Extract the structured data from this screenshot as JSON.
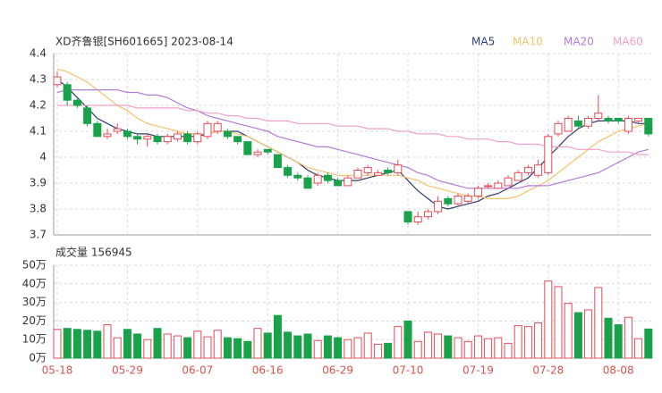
{
  "chart_data": [
    {
      "type": "candlestick",
      "title": "XD齐鲁银[SH601665] 2023-08-14",
      "categories": [
        "05-18",
        null,
        null,
        null,
        null,
        null,
        null,
        "05-29",
        null,
        null,
        null,
        null,
        null,
        null,
        "06-07",
        null,
        null,
        null,
        null,
        null,
        null,
        "06-16",
        null,
        null,
        null,
        null,
        null,
        null,
        "06-29",
        null,
        null,
        null,
        null,
        null,
        null,
        "07-10",
        null,
        null,
        null,
        null,
        null,
        null,
        "07-19",
        null,
        null,
        null,
        null,
        null,
        null,
        "07-28",
        null,
        null,
        null,
        null,
        null,
        null,
        "08-08",
        null,
        null,
        null
      ],
      "open": [
        4.28,
        4.28,
        4.22,
        4.19,
        4.13,
        4.08,
        4.1,
        4.1,
        4.08,
        4.07,
        4.08,
        4.06,
        4.07,
        4.09,
        4.06,
        4.08,
        4.1,
        4.1,
        4.08,
        4.06,
        4.01,
        4.03,
        4.01,
        3.96,
        3.93,
        3.92,
        3.9,
        3.93,
        3.91,
        3.89,
        3.92,
        3.94,
        3.93,
        3.95,
        3.94,
        3.79,
        3.75,
        3.77,
        3.79,
        3.84,
        3.82,
        3.83,
        3.85,
        3.89,
        3.88,
        3.89,
        3.91,
        3.94,
        3.93,
        3.94,
        4.09,
        4.1,
        4.14,
        4.12,
        4.15,
        4.15,
        4.15,
        4.1,
        4.14,
        4.15
      ],
      "high": [
        4.33,
        4.29,
        4.23,
        4.2,
        4.14,
        4.11,
        4.13,
        4.11,
        4.09,
        4.09,
        4.09,
        4.09,
        4.1,
        4.1,
        4.1,
        4.14,
        4.14,
        4.11,
        4.08,
        4.06,
        4.03,
        4.03,
        4.01,
        3.97,
        3.94,
        3.93,
        3.94,
        3.94,
        3.92,
        3.93,
        3.96,
        3.97,
        3.95,
        3.96,
        3.99,
        3.79,
        3.79,
        3.8,
        3.85,
        3.85,
        3.86,
        3.86,
        3.89,
        3.9,
        3.91,
        3.93,
        3.95,
        3.97,
        3.99,
        4.09,
        4.14,
        4.16,
        4.16,
        4.16,
        4.24,
        4.16,
        4.15,
        4.16,
        4.15,
        4.15
      ],
      "low": [
        4.27,
        4.2,
        4.19,
        4.12,
        4.08,
        4.07,
        4.09,
        4.07,
        4.05,
        4.04,
        4.05,
        4.05,
        4.06,
        4.05,
        4.05,
        4.07,
        4.09,
        4.07,
        4.05,
        4.01,
        4.0,
        4.01,
        3.96,
        3.92,
        3.91,
        3.88,
        3.89,
        3.9,
        3.89,
        3.89,
        3.92,
        3.93,
        3.93,
        3.93,
        3.93,
        3.74,
        3.74,
        3.76,
        3.78,
        3.81,
        3.81,
        3.82,
        3.84,
        3.88,
        3.88,
        3.89,
        3.91,
        3.93,
        3.92,
        3.93,
        4.08,
        4.1,
        4.11,
        4.11,
        4.14,
        4.13,
        4.13,
        4.09,
        4.13,
        4.08
      ],
      "close": [
        4.31,
        4.22,
        4.2,
        4.13,
        4.08,
        4.09,
        4.11,
        4.08,
        4.07,
        4.08,
        4.06,
        4.08,
        4.09,
        4.06,
        4.09,
        4.13,
        4.13,
        4.08,
        4.06,
        4.01,
        4.02,
        4.02,
        3.96,
        3.93,
        3.92,
        3.88,
        3.93,
        3.91,
        3.89,
        3.92,
        3.95,
        3.96,
        3.94,
        3.94,
        3.97,
        3.75,
        3.77,
        3.79,
        3.83,
        3.82,
        3.85,
        3.85,
        3.88,
        3.89,
        3.9,
        3.92,
        3.94,
        3.96,
        3.97,
        4.08,
        4.13,
        4.15,
        4.12,
        4.15,
        4.17,
        4.14,
        4.14,
        4.15,
        4.15,
        4.09
      ],
      "up_color": "#e84a56",
      "down_color": "#1aa24a",
      "series": [
        {
          "name": "MA5",
          "color": "#2c3e6f",
          "values": [
            4.3,
            4.27,
            4.23,
            4.19,
            4.15,
            4.13,
            4.11,
            4.1,
            4.09,
            4.09,
            4.08,
            4.08,
            4.08,
            4.08,
            4.08,
            4.09,
            4.1,
            4.1,
            4.1,
            4.08,
            4.06,
            4.04,
            4.02,
            4.0,
            3.98,
            3.95,
            3.93,
            3.92,
            3.91,
            3.91,
            3.91,
            3.92,
            3.93,
            3.94,
            3.95,
            3.91,
            3.87,
            3.84,
            3.81,
            3.8,
            3.81,
            3.82,
            3.83,
            3.85,
            3.86,
            3.88,
            3.9,
            3.92,
            3.96,
            4.0,
            4.04,
            4.08,
            4.11,
            4.13,
            4.14,
            4.14,
            4.14,
            4.14,
            4.13,
            4.13
          ]
        },
        {
          "name": "MA10",
          "color": "#f5c26b",
          "values": [
            4.34,
            4.33,
            4.31,
            4.29,
            4.26,
            4.23,
            4.2,
            4.18,
            4.15,
            4.13,
            4.12,
            4.11,
            4.1,
            4.09,
            4.09,
            4.09,
            4.1,
            4.1,
            4.09,
            4.08,
            4.06,
            4.04,
            4.02,
            4.0,
            3.98,
            3.96,
            3.95,
            3.94,
            3.93,
            3.93,
            3.93,
            3.93,
            3.93,
            3.93,
            3.93,
            3.92,
            3.91,
            3.89,
            3.88,
            3.87,
            3.86,
            3.85,
            3.85,
            3.84,
            3.84,
            3.84,
            3.85,
            3.87,
            3.89,
            3.91,
            3.94,
            3.97,
            4.0,
            4.03,
            4.06,
            4.08,
            4.1,
            4.11,
            4.12,
            4.13
          ]
        },
        {
          "name": "MA20",
          "color": "#b47ad8",
          "values": [
            4.25,
            4.26,
            4.26,
            4.26,
            4.26,
            4.26,
            4.26,
            4.25,
            4.25,
            4.24,
            4.24,
            4.23,
            4.21,
            4.19,
            4.18,
            4.16,
            4.15,
            4.14,
            4.13,
            4.12,
            4.11,
            4.1,
            4.08,
            4.07,
            4.06,
            4.05,
            4.04,
            4.04,
            4.03,
            4.02,
            4.01,
            4.0,
            3.99,
            3.98,
            3.97,
            3.96,
            3.94,
            3.93,
            3.91,
            3.9,
            3.89,
            3.88,
            3.88,
            3.88,
            3.88,
            3.88,
            3.88,
            3.89,
            3.89,
            3.89,
            3.9,
            3.91,
            3.92,
            3.93,
            3.94,
            3.96,
            3.98,
            4.0,
            4.02,
            4.03
          ]
        },
        {
          "name": "MA60",
          "color": "#f0a0c8",
          "values": [
            4.2,
            4.2,
            4.2,
            4.2,
            4.2,
            4.2,
            4.2,
            4.2,
            4.19,
            4.19,
            4.19,
            4.19,
            4.19,
            4.18,
            4.18,
            4.17,
            4.17,
            4.16,
            4.16,
            4.15,
            4.15,
            4.14,
            4.14,
            4.14,
            4.13,
            4.13,
            4.13,
            4.13,
            4.12,
            4.12,
            4.12,
            4.11,
            4.11,
            4.11,
            4.1,
            4.1,
            4.09,
            4.09,
            4.09,
            4.08,
            4.08,
            4.07,
            4.07,
            4.07,
            4.06,
            4.06,
            4.05,
            4.05,
            4.05,
            4.04,
            4.04,
            4.04,
            4.03,
            4.03,
            4.03,
            4.02,
            4.02,
            4.02,
            4.01,
            4.01
          ]
        }
      ],
      "ylim": [
        3.7,
        4.4
      ],
      "yticks": [
        3.7,
        3.8,
        3.9,
        4,
        4.1,
        4.2,
        4.3,
        4.4
      ],
      "grid": true
    },
    {
      "type": "bar",
      "title": "成交量 156945",
      "values": [
        15.5,
        16,
        15.5,
        15,
        14.5,
        18,
        11,
        15.5,
        13,
        10,
        16,
        13,
        12,
        11,
        14.5,
        11.5,
        15,
        11,
        10.5,
        9,
        16,
        13.5,
        23,
        14,
        12,
        13,
        9.5,
        12,
        11,
        10,
        11,
        13.5,
        7.5,
        8,
        17,
        20,
        9,
        14,
        13,
        12,
        11,
        9,
        12,
        10.5,
        11,
        8,
        17.5,
        17,
        19,
        41.5,
        38.5,
        29.5,
        24.5,
        26,
        38,
        21.5,
        18,
        22,
        10.5,
        15.7
      ],
      "ylim": [
        0,
        50
      ],
      "yticks": [
        {
          "value": 0,
          "label": "0万"
        },
        {
          "value": 10,
          "label": "10万"
        },
        {
          "value": 20,
          "label": "20万"
        },
        {
          "value": 30,
          "label": "30万"
        },
        {
          "value": 40,
          "label": "40万"
        },
        {
          "value": 50,
          "label": "50万"
        }
      ],
      "grid": true
    }
  ]
}
